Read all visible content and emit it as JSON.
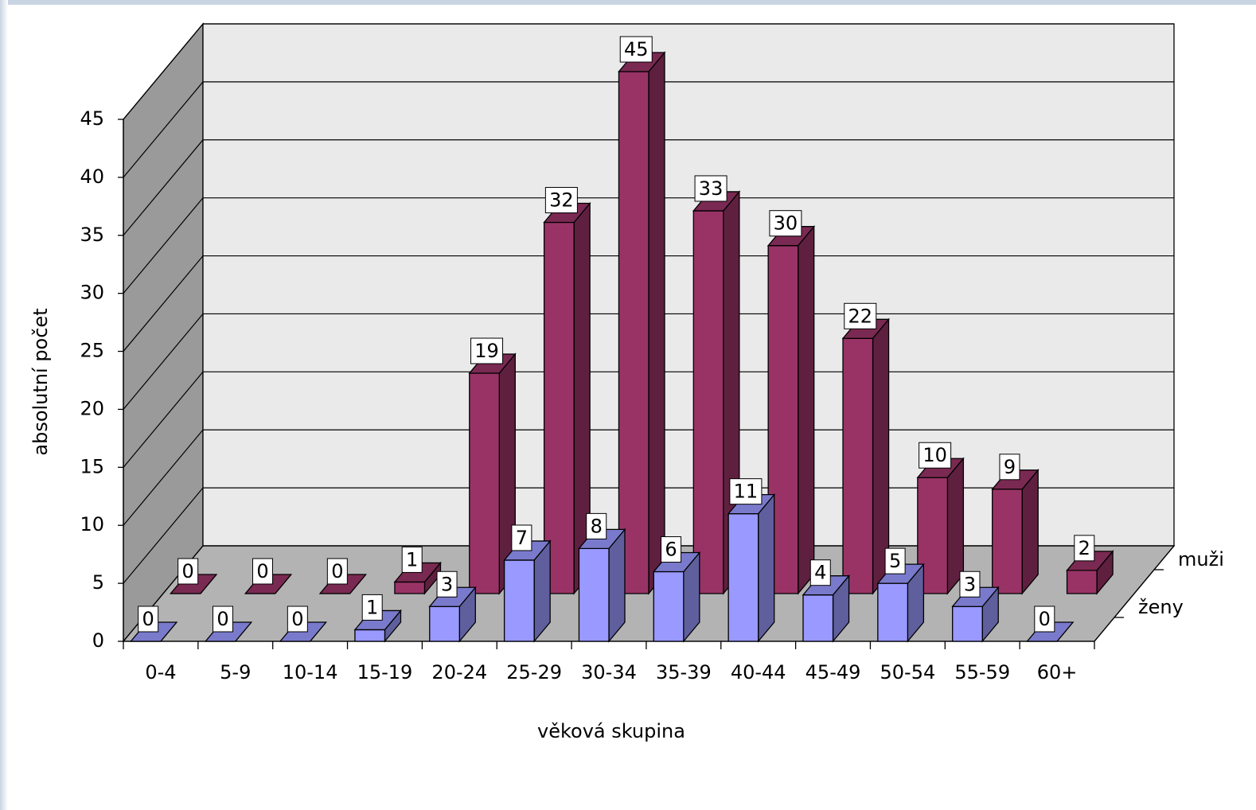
{
  "chart_data": {
    "type": "bar3d",
    "x_label": "věková skupina",
    "y_label": "absolutní počet",
    "categories": [
      "0-4",
      "5-9",
      "10-14",
      "15-19",
      "20-24",
      "25-29",
      "30-34",
      "35-39",
      "40-44",
      "45-49",
      "50-54",
      "55-59",
      "60+"
    ],
    "series": [
      {
        "name": "ženy",
        "color": "#9999ff",
        "values": [
          0,
          0,
          0,
          1,
          3,
          7,
          8,
          6,
          11,
          4,
          5,
          3,
          0
        ]
      },
      {
        "name": "muži",
        "color": "#993366",
        "values": [
          0,
          0,
          0,
          1,
          19,
          32,
          45,
          33,
          30,
          22,
          10,
          9,
          2
        ]
      }
    ],
    "ylim": [
      0,
      45
    ],
    "yticks": [
      0,
      5,
      10,
      15,
      20,
      25,
      30,
      35,
      40,
      45
    ],
    "grid": true
  }
}
